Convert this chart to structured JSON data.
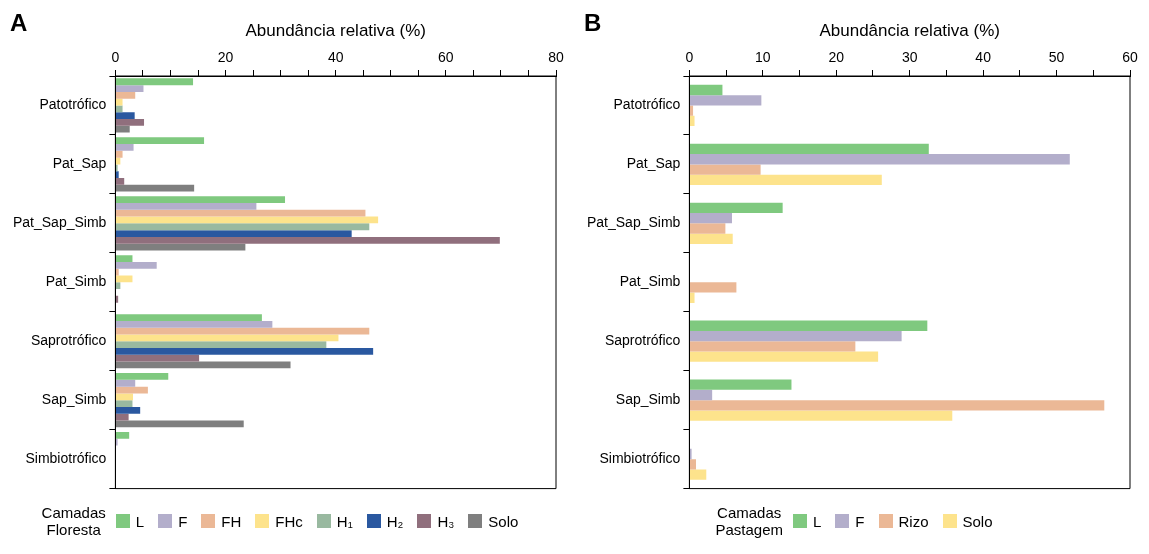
{
  "chart_data": [
    {
      "type": "bar",
      "orientation": "horizontal",
      "title": "A",
      "xlabel": "Abundância relativa (%)",
      "legend_title": "Camadas Floresta",
      "legend": "bottom",
      "categories": [
        "Patotrófico",
        "Pat_Sap",
        "Pat_Sap_Simb",
        "Pat_Simb",
        "Saprotrófico",
        "Sap_Simb",
        "Simbiotrófico"
      ],
      "xlim": [
        0,
        80
      ],
      "xticks": [
        0,
        {
          "value": 5,
          "label": null
        },
        {
          "value": 10,
          "label": null
        },
        {
          "value": 15,
          "label": null
        },
        20,
        {
          "value": 25,
          "label": null
        },
        {
          "value": 30,
          "label": null
        },
        {
          "value": 35,
          "label": null
        },
        40,
        {
          "value": 45,
          "label": null
        },
        {
          "value": 50,
          "label": null
        },
        {
          "value": 55,
          "label": null
        },
        60,
        {
          "value": 65,
          "label": null
        },
        {
          "value": 70,
          "label": null
        },
        {
          "value": 75,
          "label": null
        },
        80
      ],
      "series": [
        {
          "name": "L",
          "color": "#7fc97f",
          "values": [
            14.1,
            16.1,
            30.8,
            3.1,
            26.6,
            9.6,
            2.5
          ]
        },
        {
          "name": "F",
          "color": "#b3aecb",
          "values": [
            5.1,
            3.3,
            25.6,
            7.5,
            28.5,
            3.6,
            0.4
          ]
        },
        {
          "name": "FH",
          "color": "#ebb896",
          "values": [
            3.6,
            1.3,
            45.4,
            0.6,
            46.1,
            5.9,
            0
          ]
        },
        {
          "name": "FHc",
          "color": "#fde38c",
          "values": [
            1.3,
            0.9,
            47.7,
            3.1,
            40.5,
            3.2,
            0
          ]
        },
        {
          "name": "H₁",
          "color": "#99b9a0",
          "values": [
            1.3,
            0.4,
            46.1,
            0.9,
            38.3,
            3.1,
            0
          ]
        },
        {
          "name": "H₂",
          "color": "#2a58a0",
          "values": [
            3.5,
            0.6,
            42.9,
            0,
            46.8,
            4.5,
            0
          ]
        },
        {
          "name": "H₃",
          "color": "#906f7d",
          "values": [
            5.2,
            1.6,
            69.8,
            0.5,
            15.2,
            2.4,
            0
          ]
        },
        {
          "name": "Solo",
          "color": "#7f7f7f",
          "values": [
            2.6,
            14.3,
            23.6,
            0,
            31.8,
            23.3,
            0
          ]
        }
      ]
    },
    {
      "type": "bar",
      "orientation": "horizontal",
      "title": "B",
      "xlabel": "Abundância relativa (%)",
      "legend_title": "Camadas Pastagem",
      "legend": "bottom",
      "categories": [
        "Patotrófico",
        "Pat_Sap",
        "Pat_Sap_Simb",
        "Pat_Simb",
        "Saprotrófico",
        "Sap_Simb",
        "Simbiotrófico"
      ],
      "xlim": [
        0,
        60
      ],
      "xticks": [
        0,
        {
          "value": 5,
          "label": null
        },
        10,
        {
          "value": 15,
          "label": null
        },
        20,
        {
          "value": 25,
          "label": null
        },
        30,
        {
          "value": 35,
          "label": null
        },
        40,
        {
          "value": 45,
          "label": null
        },
        50,
        {
          "value": 55,
          "label": null
        },
        60
      ],
      "series": [
        {
          "name": "L",
          "color": "#7fc97f",
          "values": [
            4.5,
            32.6,
            12.7,
            null,
            32.4,
            13.9,
            null
          ]
        },
        {
          "name": "F",
          "color": "#b3aecb",
          "values": [
            9.8,
            51.8,
            5.8,
            null,
            28.9,
            3.1,
            0.3
          ]
        },
        {
          "name": "Rizo",
          "color": "#ebb896",
          "values": [
            0.5,
            9.7,
            4.9,
            6.4,
            22.6,
            56.5,
            0.9
          ]
        },
        {
          "name": "Solo",
          "color": "#fde38c",
          "values": [
            0.7,
            26.2,
            5.9,
            0.7,
            25.7,
            35.8,
            2.3
          ]
        }
      ]
    }
  ]
}
